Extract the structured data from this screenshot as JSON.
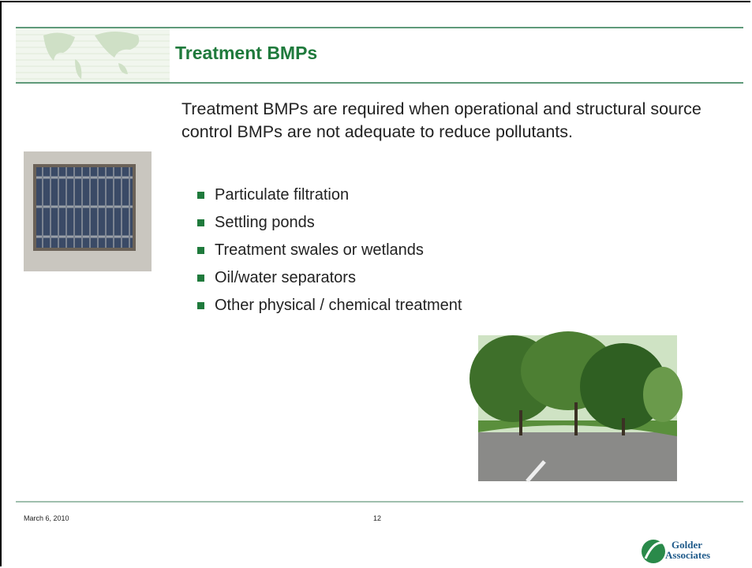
{
  "header": {
    "title": "Treatment BMPs"
  },
  "body": {
    "intro": "Treatment BMPs are required when operational and structural source control BMPs are not adequate to reduce pollutants.",
    "bullets": [
      "Particulate filtration",
      "Settling ponds",
      "Treatment swales or wetlands",
      "Oil/water separators",
      "Other physical / chemical treatment"
    ]
  },
  "footer": {
    "date": "March 6, 2010",
    "page": "12",
    "logo": [
      "Golder",
      "Associates"
    ]
  }
}
